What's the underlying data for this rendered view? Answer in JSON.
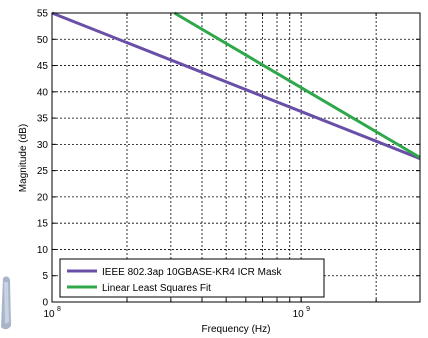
{
  "chart_data": {
    "type": "line",
    "title": "",
    "xlabel": "Frequency (Hz)",
    "ylabel": "Magnitude (dB)",
    "x_scale": "log",
    "xlim": [
      100000000,
      3000000000
    ],
    "ylim": [
      0,
      55
    ],
    "grid": true,
    "legend": "bottom-left",
    "y_ticks": [
      "0",
      "5",
      "10",
      "15",
      "20",
      "25",
      "30",
      "35",
      "40",
      "45",
      "50",
      "55"
    ],
    "x_ticks": [
      {
        "value": 100000000,
        "base": "10",
        "exp": "8"
      },
      {
        "value": 1000000000,
        "base": "10",
        "exp": "9"
      }
    ],
    "series": [
      {
        "name": "IEEE 802.3ap 10GBASE-KR4 ICR Mask",
        "color": "#6a4fa8",
        "x": [
          100000000,
          3000000000
        ],
        "y": [
          55,
          27.3
        ]
      },
      {
        "name": "Linear Least Squares Fit",
        "color": "#2ea84a",
        "x": [
          310000000,
          3000000000
        ],
        "y": [
          55,
          27.5
        ]
      }
    ]
  }
}
